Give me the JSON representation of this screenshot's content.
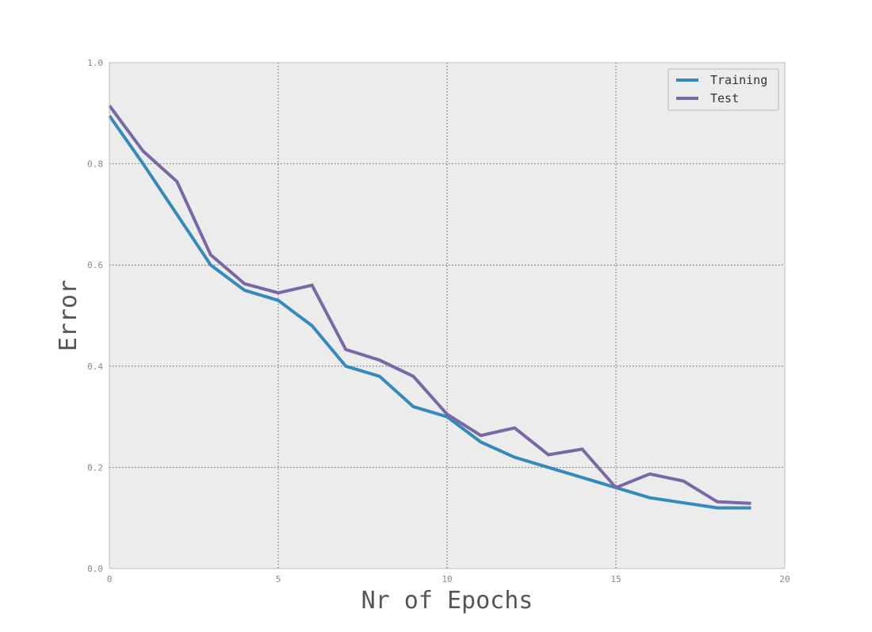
{
  "chart_data": {
    "type": "line",
    "title": "",
    "xlabel": "Nr of Epochs",
    "ylabel": "Error",
    "xlim": [
      0,
      20
    ],
    "ylim": [
      0.0,
      1.0
    ],
    "x_ticks": [
      0,
      5,
      10,
      15,
      20
    ],
    "x_tick_labels": [
      "0",
      "5",
      "10",
      "15",
      "20"
    ],
    "y_ticks": [
      0.0,
      0.2,
      0.4,
      0.6,
      0.8,
      1.0
    ],
    "y_tick_labels": [
      "0.0",
      "0.2",
      "0.4",
      "0.6",
      "0.8",
      "1.0"
    ],
    "grid": true,
    "legend_position": "top-right",
    "background_color": "#ececec",
    "x": [
      0,
      1,
      2,
      3,
      4,
      5,
      6,
      7,
      8,
      9,
      10,
      11,
      12,
      13,
      14,
      15,
      16,
      17,
      18,
      19
    ],
    "series": [
      {
        "name": "Training",
        "color": "#348abd",
        "values": [
          0.895,
          0.8,
          0.7,
          0.6,
          0.55,
          0.53,
          0.48,
          0.4,
          0.38,
          0.32,
          0.3,
          0.25,
          0.22,
          0.2,
          0.18,
          0.16,
          0.14,
          0.13,
          0.12,
          0.12
        ]
      },
      {
        "name": "Test",
        "color": "#7a68a6",
        "values": [
          0.915,
          0.825,
          0.765,
          0.62,
          0.563,
          0.545,
          0.56,
          0.433,
          0.412,
          0.38,
          0.305,
          0.263,
          0.278,
          0.225,
          0.236,
          0.16,
          0.187,
          0.173,
          0.132,
          0.129
        ]
      }
    ]
  }
}
